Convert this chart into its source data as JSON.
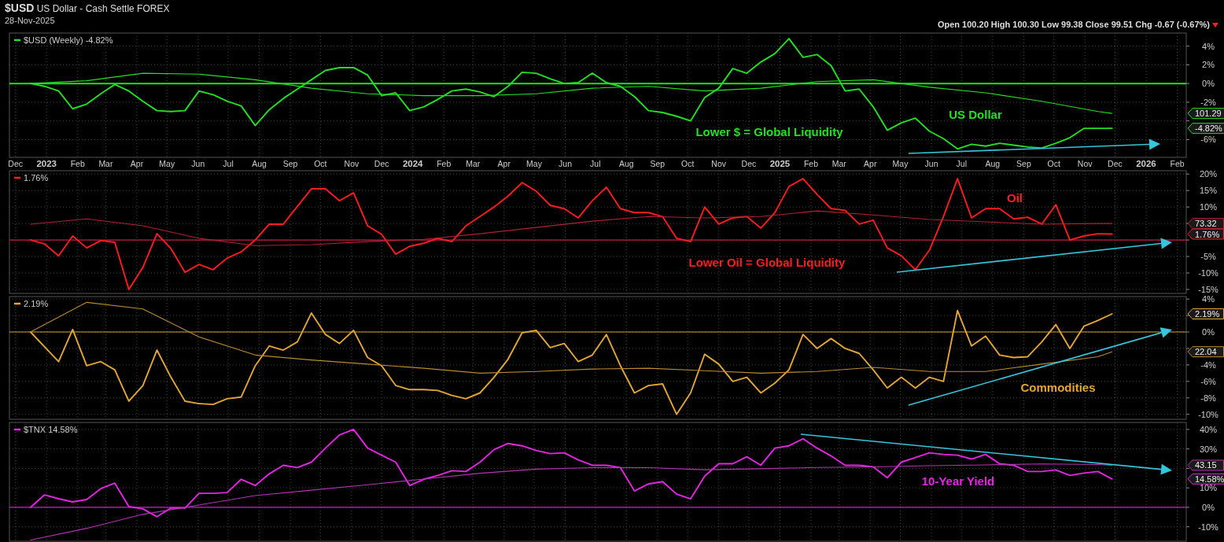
{
  "chart_data": [
    {
      "type": "line",
      "title": "$USD US Dollar - Cash Settle FOREX",
      "subtitle": "28-Nov-2025",
      "annotations": [
        "Open 100.20 High 100.30 Low 99.38 Close 99.51 Chg -0.67 (-0.67%)",
        "Lower $ = Global Liquidity",
        "US Dollar",
        "-4.82%",
        "101.29"
      ],
      "x": [
        "2022-12-16",
        "2022-12-30",
        "2023-01-13",
        "2023-01-27",
        "2023-02-10",
        "2023-02-24",
        "2023-03-10",
        "2023-03-24",
        "2023-04-07",
        "2023-04-21",
        "2023-05-05",
        "2023-05-19",
        "2023-06-02",
        "2023-06-16",
        "2023-06-30",
        "2023-07-14",
        "2023-07-28",
        "2023-08-11",
        "2023-08-25",
        "2023-09-08",
        "2023-09-22",
        "2023-10-06",
        "2023-10-20",
        "2023-11-03",
        "2023-11-17",
        "2023-12-01",
        "2023-12-15",
        "2023-12-29",
        "2024-01-12",
        "2024-01-26",
        "2024-02-09",
        "2024-02-23",
        "2024-03-08",
        "2024-03-22",
        "2024-04-05",
        "2024-04-19",
        "2024-05-03",
        "2024-05-17",
        "2024-05-31",
        "2024-06-14",
        "2024-06-28",
        "2024-07-12",
        "2024-07-26",
        "2024-08-09",
        "2024-08-23",
        "2024-09-06",
        "2024-09-20",
        "2024-10-04",
        "2024-10-18",
        "2024-11-01",
        "2024-11-15",
        "2024-11-29",
        "2024-12-13",
        "2024-12-27",
        "2025-01-10",
        "2025-01-24",
        "2025-02-07",
        "2025-02-21",
        "2025-03-07",
        "2025-03-21",
        "2025-04-04",
        "2025-04-18",
        "2025-05-02",
        "2025-05-16",
        "2025-05-30",
        "2025-06-13",
        "2025-06-27",
        "2025-07-11",
        "2025-07-25",
        "2025-08-08",
        "2025-08-22",
        "2025-09-05",
        "2025-09-19",
        "2025-10-03",
        "2025-10-17",
        "2025-10-31",
        "2025-11-14",
        "2025-11-28"
      ],
      "series": [
        {
          "name": "$USD (Weekly) -4.82%",
          "color": "#22e022",
          "values": [
            0.0,
            -0.3,
            -0.8,
            -2.7,
            -2.2,
            -1.1,
            -0.1,
            -0.8,
            -1.9,
            -2.9,
            -3.0,
            -2.9,
            -0.8,
            -1.2,
            -1.9,
            -2.4,
            -4.5,
            -2.8,
            -1.6,
            -0.6,
            0.4,
            1.4,
            1.7,
            1.7,
            0.9,
            -1.3,
            -1.0,
            -2.9,
            -2.5,
            -1.7,
            -0.8,
            -0.6,
            -0.9,
            -1.4,
            -0.3,
            1.2,
            1.1,
            0.5,
            0.0,
            0.1,
            1.1,
            0.1,
            -0.3,
            -1.4,
            -2.9,
            -3.1,
            -3.5,
            -4.0,
            -1.5,
            -0.5,
            1.6,
            1.1,
            2.3,
            3.2,
            4.8,
            2.8,
            3.1,
            1.9,
            -0.8,
            -0.6,
            -2.5,
            -5.0,
            -4.2,
            -3.7,
            -5.1,
            -5.9,
            -7.0,
            -6.5,
            -6.7,
            -6.4,
            -6.6,
            -6.8,
            -6.9,
            -6.4,
            -5.8,
            -4.8,
            -4.8,
            -4.8
          ]
        },
        {
          "color": "#22e022",
          "x": [
            "2022-12-16",
            "2023-02-10",
            "2023-04-07",
            "2023-06-02",
            "2023-07-28",
            "2023-09-22",
            "2023-11-17",
            "2024-01-12",
            "2024-03-08",
            "2024-05-03",
            "2024-06-28",
            "2024-08-23",
            "2024-10-18",
            "2024-12-13",
            "2025-02-07",
            "2025-04-04",
            "2025-05-30",
            "2025-07-25",
            "2025-09-19",
            "2025-11-14",
            "2025-11-28"
          ],
          "values": [
            0.0,
            0.3,
            1.1,
            1.0,
            0.4,
            -0.5,
            -1.1,
            -1.3,
            -1.3,
            -1.1,
            -0.5,
            -0.3,
            -0.8,
            -0.5,
            0.2,
            0.4,
            -0.4,
            -1.0,
            -1.9,
            -3.0,
            -3.2
          ]
        }
      ],
      "xlim": [
        "2022-11-25",
        "2026-02-10"
      ],
      "xticks": [
        {
          "value": "2022-12-01",
          "label": "Dec"
        },
        {
          "value": "2023-01-01",
          "label": "2023"
        },
        {
          "value": "2023-02-01",
          "label": "Feb"
        },
        {
          "value": "2023-03-01",
          "label": "Mar"
        },
        {
          "value": "2023-04-01",
          "label": "Apr"
        },
        {
          "value": "2023-05-01",
          "label": "May"
        },
        {
          "value": "2023-06-01",
          "label": "Jun"
        },
        {
          "value": "2023-07-01",
          "label": "Jul"
        },
        {
          "value": "2023-08-01",
          "label": "Aug"
        },
        {
          "value": "2023-09-01",
          "label": "Sep"
        },
        {
          "value": "2023-10-01",
          "label": "Oct"
        },
        {
          "value": "2023-11-01",
          "label": "Nov"
        },
        {
          "value": "2023-12-01",
          "label": "Dec"
        },
        {
          "value": "2024-01-01",
          "label": "2024"
        },
        {
          "value": "2024-02-01",
          "label": "Feb"
        },
        {
          "value": "2024-03-01",
          "label": "Mar"
        },
        {
          "value": "2024-04-01",
          "label": "Apr"
        },
        {
          "value": "2024-05-01",
          "label": "May"
        },
        {
          "value": "2024-06-01",
          "label": "Jun"
        },
        {
          "value": "2024-07-01",
          "label": "Jul"
        },
        {
          "value": "2024-08-01",
          "label": "Aug"
        },
        {
          "value": "2024-09-01",
          "label": "Sep"
        },
        {
          "value": "2024-10-01",
          "label": "Oct"
        },
        {
          "value": "2024-11-01",
          "label": "Nov"
        },
        {
          "value": "2024-12-01",
          "label": "Dec"
        },
        {
          "value": "2025-01-01",
          "label": "2025"
        },
        {
          "value": "2025-02-01",
          "label": "Feb"
        },
        {
          "value": "2025-03-01",
          "label": "Mar"
        },
        {
          "value": "2025-04-01",
          "label": "Apr"
        },
        {
          "value": "2025-05-01",
          "label": "May"
        },
        {
          "value": "2025-06-01",
          "label": "Jun"
        },
        {
          "value": "2025-07-01",
          "label": "Jul"
        },
        {
          "value": "2025-08-01",
          "label": "Aug"
        },
        {
          "value": "2025-09-01",
          "label": "Sep"
        },
        {
          "value": "2025-10-01",
          "label": "Oct"
        },
        {
          "value": "2025-11-01",
          "label": "Nov"
        },
        {
          "value": "2025-12-01",
          "label": "Dec"
        },
        {
          "value": "2026-01-01",
          "label": "2026"
        },
        {
          "value": "2026-02-01",
          "label": "Feb"
        }
      ],
      "ylim": [
        -7.9,
        5.4
      ],
      "yticks": [
        {
          "value": -6,
          "label": "-6%"
        },
        {
          "value": -4,
          "label": null
        },
        {
          "value": -2,
          "label": "-2%"
        },
        {
          "value": 0,
          "label": "0%"
        },
        {
          "value": 2,
          "label": "2%"
        },
        {
          "value": 4,
          "label": "4%"
        }
      ],
      "ref_lines": [
        {
          "axis": "y",
          "value": 0,
          "color": "#22e022"
        }
      ],
      "grid": true,
      "legend": "top left"
    },
    {
      "type": "line",
      "annotations": [
        "Oil",
        "Lower Oil = Global Liquidity",
        "1.76%",
        "73.32"
      ],
      "x": [
        "2022-12-16",
        "2022-12-30",
        "2023-01-13",
        "2023-01-27",
        "2023-02-10",
        "2023-02-24",
        "2023-03-10",
        "2023-03-24",
        "2023-04-07",
        "2023-04-21",
        "2023-05-05",
        "2023-05-19",
        "2023-06-02",
        "2023-06-16",
        "2023-06-30",
        "2023-07-14",
        "2023-07-28",
        "2023-08-11",
        "2023-08-25",
        "2023-09-08",
        "2023-09-22",
        "2023-10-06",
        "2023-10-20",
        "2023-11-03",
        "2023-11-17",
        "2023-12-01",
        "2023-12-15",
        "2023-12-29",
        "2024-01-12",
        "2024-01-26",
        "2024-02-09",
        "2024-02-23",
        "2024-03-08",
        "2024-03-22",
        "2024-04-05",
        "2024-04-19",
        "2024-05-03",
        "2024-05-17",
        "2024-05-31",
        "2024-06-14",
        "2024-06-28",
        "2024-07-12",
        "2024-07-26",
        "2024-08-09",
        "2024-08-23",
        "2024-09-06",
        "2024-09-20",
        "2024-10-04",
        "2024-10-18",
        "2024-11-01",
        "2024-11-15",
        "2024-11-29",
        "2024-12-13",
        "2024-12-27",
        "2025-01-10",
        "2025-01-24",
        "2025-02-07",
        "2025-02-21",
        "2025-03-07",
        "2025-03-21",
        "2025-04-04",
        "2025-04-18",
        "2025-05-02",
        "2025-05-16",
        "2025-05-30",
        "2025-06-13",
        "2025-06-27",
        "2025-07-11",
        "2025-07-25",
        "2025-08-08",
        "2025-08-22",
        "2025-09-05",
        "2025-09-19",
        "2025-10-03",
        "2025-10-17",
        "2025-10-31",
        "2025-11-14",
        "2025-11-28"
      ],
      "series": [
        {
          "name": "1.76%",
          "color": "#ff1c1c",
          "values": [
            0,
            -1.2,
            -4.8,
            1.2,
            -2.4,
            -0.2,
            -0.7,
            -15,
            -8.3,
            1.9,
            -2.6,
            -9.8,
            -7.4,
            -9.0,
            -5.5,
            -3.6,
            0,
            4.8,
            4.8,
            10.2,
            15.5,
            15.5,
            11.9,
            14.3,
            4.3,
            1.7,
            -4.3,
            -1.9,
            -1.0,
            0.5,
            -0.5,
            4.3,
            7.1,
            10.0,
            13.3,
            17.4,
            14.8,
            10.5,
            9.5,
            6.7,
            11.9,
            16.0,
            9.5,
            8.3,
            8.3,
            7.1,
            0.5,
            -0.5,
            10.0,
            4.8,
            6.7,
            7.1,
            3.6,
            8.3,
            16.2,
            18.6,
            13.8,
            9.5,
            9.0,
            4.8,
            6.0,
            -2.4,
            -4.8,
            -9,
            -3.1,
            7.1,
            18.6,
            6.7,
            9.5,
            9.5,
            6.4,
            6.9,
            4.8,
            10.7,
            0,
            1.2,
            1.9,
            1.8
          ]
        },
        {
          "color": "#b3202e",
          "x": [
            "2022-12-16",
            "2023-02-10",
            "2023-04-07",
            "2023-06-02",
            "2023-07-28",
            "2023-09-22",
            "2023-11-17",
            "2024-01-12",
            "2024-03-08",
            "2024-05-03",
            "2024-06-28",
            "2024-08-23",
            "2024-10-18",
            "2024-12-13",
            "2025-02-07",
            "2025-04-04",
            "2025-05-30",
            "2025-07-25",
            "2025-09-19",
            "2025-11-14",
            "2025-11-28"
          ],
          "values": [
            4.8,
            6.4,
            4.3,
            0.5,
            -1.7,
            -1.4,
            -0.5,
            0.2,
            1.9,
            3.8,
            5.7,
            7.1,
            6.7,
            7.1,
            8.8,
            7.6,
            6.2,
            5.5,
            4.8,
            5.0,
            5.0
          ]
        }
      ],
      "xlim": [
        "2022-11-25",
        "2026-02-10"
      ],
      "xticks": [
        "2022-12-01",
        "2023-01-01",
        "2023-02-01",
        "2023-03-01",
        "2023-04-01",
        "2023-05-01",
        "2023-06-01",
        "2023-07-01",
        "2023-08-01",
        "2023-09-01",
        "2023-10-01",
        "2023-11-01",
        "2023-12-01",
        "2024-01-01",
        "2024-02-01",
        "2024-03-01",
        "2024-04-01",
        "2024-05-01",
        "2024-06-01",
        "2024-07-01",
        "2024-08-01",
        "2024-09-01",
        "2024-10-01",
        "2024-11-01",
        "2024-12-01",
        "2025-01-01",
        "2025-02-01",
        "2025-03-01",
        "2025-04-01",
        "2025-05-01",
        "2025-06-01",
        "2025-07-01",
        "2025-08-01",
        "2025-09-01",
        "2025-10-01",
        "2025-11-01",
        "2025-12-01",
        "2026-01-01",
        "2026-02-01"
      ],
      "tick_labels": "y",
      "ylim": [
        -16.2,
        21
      ],
      "yticks": [
        {
          "value": -15,
          "label": "-15%"
        },
        {
          "value": -10,
          "label": "-10%"
        },
        {
          "value": -5,
          "label": "-5%"
        },
        {
          "value": 0,
          "label": null
        },
        {
          "value": 5,
          "label": null
        },
        {
          "value": 10,
          "label": "10%"
        },
        {
          "value": 15,
          "label": "15%"
        },
        {
          "value": 20,
          "label": "20%"
        }
      ],
      "ref_lines": [
        {
          "axis": "y",
          "value": 0,
          "color": "#c21a44"
        }
      ],
      "grid": true,
      "legend": "top left"
    },
    {
      "type": "line",
      "annotations": [
        "Commodities",
        "2.19%",
        "22.04"
      ],
      "x": [
        "2022-12-16",
        "2022-12-30",
        "2023-01-13",
        "2023-01-27",
        "2023-02-10",
        "2023-02-24",
        "2023-03-10",
        "2023-03-24",
        "2023-04-07",
        "2023-04-21",
        "2023-05-05",
        "2023-05-19",
        "2023-06-02",
        "2023-06-16",
        "2023-06-30",
        "2023-07-14",
        "2023-07-28",
        "2023-08-11",
        "2023-08-25",
        "2023-09-08",
        "2023-09-22",
        "2023-10-06",
        "2023-10-20",
        "2023-11-03",
        "2023-11-17",
        "2023-12-01",
        "2023-12-15",
        "2023-12-29",
        "2024-01-12",
        "2024-01-26",
        "2024-02-09",
        "2024-02-23",
        "2024-03-08",
        "2024-03-22",
        "2024-04-05",
        "2024-04-19",
        "2024-05-03",
        "2024-05-17",
        "2024-05-31",
        "2024-06-14",
        "2024-06-28",
        "2024-07-12",
        "2024-07-26",
        "2024-08-09",
        "2024-08-23",
        "2024-09-06",
        "2024-09-20",
        "2024-10-04",
        "2024-10-18",
        "2024-11-01",
        "2024-11-15",
        "2024-11-29",
        "2024-12-13",
        "2024-12-27",
        "2025-01-10",
        "2025-01-24",
        "2025-02-07",
        "2025-02-21",
        "2025-03-07",
        "2025-03-21",
        "2025-04-04",
        "2025-04-18",
        "2025-05-02",
        "2025-05-16",
        "2025-05-30",
        "2025-06-13",
        "2025-06-27",
        "2025-07-11",
        "2025-07-25",
        "2025-08-08",
        "2025-08-22",
        "2025-09-05",
        "2025-09-19",
        "2025-10-03",
        "2025-10-17",
        "2025-10-31",
        "2025-11-14",
        "2025-11-28"
      ],
      "series": [
        {
          "name": "2.19%",
          "color": "#e3a633",
          "values": [
            0,
            -1.8,
            -3.6,
            0.3,
            -4.1,
            -3.6,
            -4.6,
            -8.4,
            -6.5,
            -2.2,
            -5.5,
            -8.4,
            -8.7,
            -8.8,
            -8.1,
            -7.9,
            -4.1,
            -1.7,
            -2.2,
            -1.2,
            2.3,
            -0.3,
            -1.4,
            0.2,
            -3.1,
            -4.1,
            -6.5,
            -7.0,
            -7.0,
            -7.1,
            -7.7,
            -8.1,
            -7.4,
            -5.5,
            -3.3,
            -0.1,
            0.2,
            -1.9,
            -1.4,
            -3.6,
            -2.8,
            -0.3,
            -4.1,
            -7.4,
            -6.5,
            -6.3,
            -10.0,
            -7.4,
            -2.7,
            -3.9,
            -6.0,
            -5.5,
            -7.4,
            -6.2,
            -4.6,
            -0.3,
            -2.0,
            -0.8,
            -2.0,
            -2.6,
            -4.6,
            -6.8,
            -5.5,
            -6.8,
            -5.5,
            -6.0,
            2.6,
            -1.7,
            -0.5,
            -2.8,
            -3.1,
            -3.0,
            -1.2,
            0.9,
            -2.0,
            0.7,
            1.4,
            2.2
          ]
        },
        {
          "color": "#b98a2e",
          "x": [
            "2022-12-16",
            "2023-02-10",
            "2023-04-07",
            "2023-06-02",
            "2023-07-28",
            "2023-09-22",
            "2023-11-17",
            "2024-01-12",
            "2024-03-08",
            "2024-05-03",
            "2024-06-28",
            "2024-08-23",
            "2024-10-18",
            "2024-12-13",
            "2025-02-07",
            "2025-04-04",
            "2025-05-30",
            "2025-07-25",
            "2025-09-19",
            "2025-11-14",
            "2025-11-28"
          ],
          "values": [
            0,
            3.6,
            2.8,
            -0.6,
            -2.8,
            -3.4,
            -3.9,
            -4.4,
            -5.0,
            -4.8,
            -4.5,
            -4.4,
            -4.7,
            -5.0,
            -4.8,
            -4.3,
            -4.8,
            -4.8,
            -3.9,
            -3.0,
            -2.4
          ]
        }
      ],
      "xlim": [
        "2022-11-25",
        "2026-02-10"
      ],
      "xticks": [
        "2022-12-01",
        "2023-01-01",
        "2023-02-01",
        "2023-03-01",
        "2023-04-01",
        "2023-05-01",
        "2023-06-01",
        "2023-07-01",
        "2023-08-01",
        "2023-09-01",
        "2023-10-01",
        "2023-11-01",
        "2023-12-01",
        "2024-01-01",
        "2024-02-01",
        "2024-03-01",
        "2024-04-01",
        "2024-05-01",
        "2024-06-01",
        "2024-07-01",
        "2024-08-01",
        "2024-09-01",
        "2024-10-01",
        "2024-11-01",
        "2024-12-01",
        "2025-01-01",
        "2025-02-01",
        "2025-03-01",
        "2025-04-01",
        "2025-05-01",
        "2025-06-01",
        "2025-07-01",
        "2025-08-01",
        "2025-09-01",
        "2025-10-01",
        "2025-11-01",
        "2025-12-01",
        "2026-01-01",
        "2026-02-01"
      ],
      "tick_labels": "y",
      "ylim": [
        -10.6,
        4.3
      ],
      "yticks": [
        {
          "value": -10,
          "label": "-10%"
        },
        {
          "value": -8,
          "label": "-8%"
        },
        {
          "value": -6,
          "label": "-6%"
        },
        {
          "value": -4,
          "label": "-4%"
        },
        {
          "value": -2,
          "label": null
        },
        {
          "value": 0,
          "label": "0%"
        },
        {
          "value": 2,
          "label": null
        },
        {
          "value": 4,
          "label": "4%"
        }
      ],
      "ref_lines": [
        {
          "axis": "y",
          "value": 0,
          "color": "#d0a030"
        }
      ],
      "grid": true,
      "legend": "top left"
    },
    {
      "type": "line",
      "annotations": [
        "10-Year Yield",
        "14.58%",
        "43.15"
      ],
      "x": [
        "2022-12-16",
        "2022-12-30",
        "2023-01-13",
        "2023-01-27",
        "2023-02-10",
        "2023-02-24",
        "2023-03-10",
        "2023-03-24",
        "2023-04-07",
        "2023-04-21",
        "2023-05-05",
        "2023-05-19",
        "2023-06-02",
        "2023-06-16",
        "2023-06-30",
        "2023-07-14",
        "2023-07-28",
        "2023-08-11",
        "2023-08-25",
        "2023-09-08",
        "2023-09-22",
        "2023-10-06",
        "2023-10-20",
        "2023-11-03",
        "2023-11-17",
        "2023-12-01",
        "2023-12-15",
        "2023-12-29",
        "2024-01-12",
        "2024-01-26",
        "2024-02-09",
        "2024-02-23",
        "2024-03-08",
        "2024-03-22",
        "2024-04-05",
        "2024-04-19",
        "2024-05-03",
        "2024-05-17",
        "2024-05-31",
        "2024-06-14",
        "2024-06-28",
        "2024-07-12",
        "2024-07-26",
        "2024-08-09",
        "2024-08-23",
        "2024-09-06",
        "2024-09-20",
        "2024-10-04",
        "2024-10-18",
        "2024-11-01",
        "2024-11-15",
        "2024-11-29",
        "2024-12-13",
        "2024-12-27",
        "2025-01-10",
        "2025-01-24",
        "2025-02-07",
        "2025-02-21",
        "2025-03-07",
        "2025-03-21",
        "2025-04-04",
        "2025-04-18",
        "2025-05-02",
        "2025-05-16",
        "2025-05-30",
        "2025-06-13",
        "2025-06-27",
        "2025-07-11",
        "2025-07-25",
        "2025-08-08",
        "2025-08-22",
        "2025-09-05",
        "2025-09-19",
        "2025-10-03",
        "2025-10-17",
        "2025-10-31",
        "2025-11-14",
        "2025-11-28"
      ],
      "series": [
        {
          "name": "$TNX 14.58%",
          "color": "#e624e6",
          "values": [
            0,
            6.4,
            4.4,
            2.8,
            4.0,
            9.6,
            12.4,
            0.4,
            -0.8,
            -4.8,
            -0.4,
            -0.4,
            7.2,
            7.2,
            7.6,
            14.4,
            11.2,
            17.2,
            21.6,
            20.4,
            23.2,
            30.4,
            37.2,
            40,
            30.4,
            26.8,
            23.2,
            11.2,
            14.4,
            16.4,
            18.8,
            18.4,
            23.2,
            29.6,
            32.8,
            31.6,
            29.2,
            27.6,
            28.0,
            24.4,
            21.6,
            21.6,
            20.4,
            8.4,
            12.0,
            13.2,
            6.8,
            4.4,
            16.0,
            22.4,
            22.4,
            26.0,
            21.6,
            30.4,
            31.6,
            35.2,
            30.4,
            26.4,
            21.6,
            21.6,
            20.8,
            15.2,
            23.2,
            25.6,
            28.0,
            27.2,
            26.8,
            24.8,
            27.2,
            22.4,
            21.6,
            18.4,
            18.4,
            19.2,
            16.4,
            17.6,
            18.4,
            14.6
          ]
        },
        {
          "color": "#b632b6",
          "x": [
            "2022-12-16",
            "2023-02-10",
            "2023-04-07",
            "2023-06-02",
            "2023-07-28",
            "2023-09-22",
            "2023-11-17",
            "2024-01-12",
            "2024-03-08",
            "2024-05-03",
            "2024-06-28",
            "2024-08-23",
            "2024-10-18",
            "2024-12-13",
            "2025-02-07",
            "2025-04-04",
            "2025-05-30",
            "2025-07-25",
            "2025-09-19",
            "2025-11-14",
            "2025-11-28"
          ],
          "values": [
            -16.8,
            -10.8,
            -3.6,
            1.2,
            6.0,
            8.8,
            11.6,
            14.5,
            17.5,
            19.6,
            20.4,
            20.4,
            19.3,
            19.8,
            20.5,
            20.8,
            21.4,
            21.8,
            22.3,
            22.0,
            21.6
          ]
        }
      ],
      "xlim": [
        "2022-11-25",
        "2026-02-10"
      ],
      "xticks": [
        "2022-12-01",
        "2023-01-01",
        "2023-02-01",
        "2023-03-01",
        "2023-04-01",
        "2023-05-01",
        "2023-06-01",
        "2023-07-01",
        "2023-08-01",
        "2023-09-01",
        "2023-10-01",
        "2023-11-01",
        "2023-12-01",
        "2024-01-01",
        "2024-02-01",
        "2024-03-01",
        "2024-04-01",
        "2024-05-01",
        "2024-06-01",
        "2024-07-01",
        "2024-08-01",
        "2024-09-01",
        "2024-10-01",
        "2024-11-01",
        "2024-12-01",
        "2025-01-01",
        "2025-02-01",
        "2025-03-01",
        "2025-04-01",
        "2025-05-01",
        "2025-06-01",
        "2025-07-01",
        "2025-08-01",
        "2025-09-01",
        "2025-10-01",
        "2025-11-01",
        "2025-12-01",
        "2026-01-01",
        "2026-02-01"
      ],
      "tick_labels": "y",
      "ylim": [
        -17.4,
        43.6
      ],
      "yticks": [
        {
          "value": -10,
          "label": "-10%"
        },
        {
          "value": 0,
          "label": "0%"
        },
        {
          "value": 10,
          "label": "10%"
        },
        {
          "value": 20,
          "label": null
        },
        {
          "value": 30,
          "label": "30%"
        },
        {
          "value": 40,
          "label": "40%"
        }
      ],
      "ref_lines": [
        {
          "axis": "y",
          "value": 0,
          "color": "#c020c0"
        }
      ],
      "grid": true,
      "legend": "top left"
    }
  ]
}
